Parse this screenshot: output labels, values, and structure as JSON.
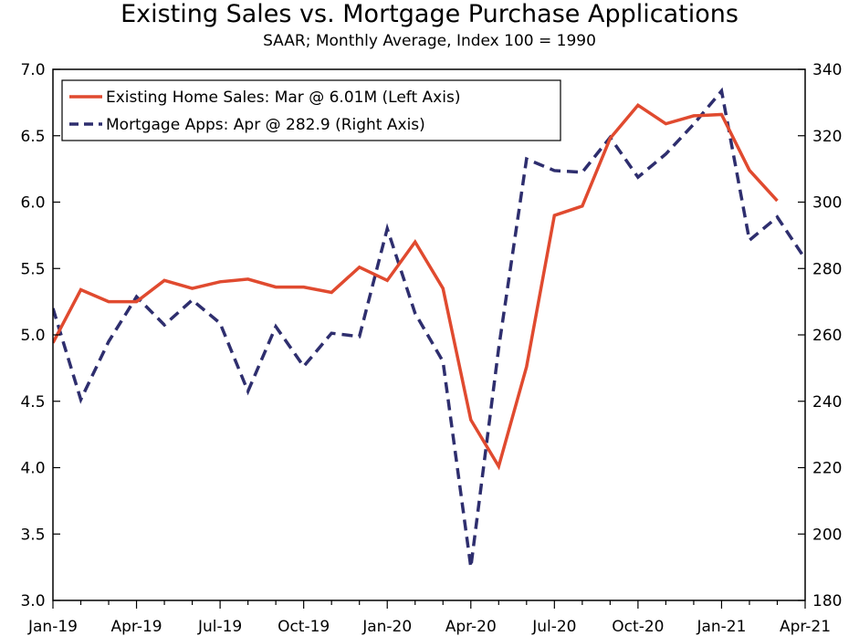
{
  "chart_data": {
    "type": "line",
    "title": "Existing Sales vs. Mortgage Purchase Applications",
    "subtitle": "SAAR; Monthly Average, Index 100 = 1990",
    "x_tick_labels": [
      "Jan-19",
      "Apr-19",
      "Jul-19",
      "Oct-19",
      "Jan-20",
      "Apr-20",
      "Jul-20",
      "Oct-20",
      "Jan-21",
      "Apr-21"
    ],
    "x": [
      "Jan-19",
      "Feb-19",
      "Mar-19",
      "Apr-19",
      "May-19",
      "Jun-19",
      "Jul-19",
      "Aug-19",
      "Sep-19",
      "Oct-19",
      "Nov-19",
      "Dec-19",
      "Jan-20",
      "Feb-20",
      "Mar-20",
      "Apr-20",
      "May-20",
      "Jun-20",
      "Jul-20",
      "Aug-20",
      "Sep-20",
      "Oct-20",
      "Nov-20",
      "Dec-20",
      "Jan-21",
      "Feb-21",
      "Mar-21",
      "Apr-21"
    ],
    "y_left": {
      "lim": [
        3.0,
        7.0
      ],
      "ticks": [
        "3.0",
        "3.5",
        "4.0",
        "4.5",
        "5.0",
        "5.5",
        "6.0",
        "6.5",
        "7.0"
      ]
    },
    "y_right": {
      "lim": [
        180,
        340
      ],
      "ticks": [
        "180",
        "200",
        "220",
        "240",
        "260",
        "280",
        "300",
        "320",
        "340"
      ]
    },
    "grid": false,
    "legend": "top-left",
    "series": [
      {
        "name": "Existing Home Sales: Mar @ 6.01M (Left Axis)",
        "axis": "left",
        "color": "#e04a2f",
        "style": "solid",
        "values": [
          4.94,
          5.34,
          5.25,
          5.25,
          5.41,
          5.35,
          5.4,
          5.42,
          5.36,
          5.36,
          5.32,
          5.51,
          5.41,
          5.7,
          5.35,
          4.36,
          4.01,
          4.76,
          5.9,
          5.97,
          6.48,
          6.73,
          6.59,
          6.65,
          6.66,
          6.24,
          6.01,
          null
        ]
      },
      {
        "name": "Mortgage Apps: Apr @ 282.9 (Right Axis)",
        "axis": "right",
        "color": "#2e2e6e",
        "style": "dashed",
        "values": [
          268.0,
          240.5,
          258.0,
          271.5,
          263.0,
          270.5,
          263.5,
          243.0,
          262.5,
          250.5,
          260.5,
          259.5,
          292.0,
          266.5,
          252.0,
          190.0,
          256.0,
          313.0,
          309.5,
          309.0,
          319.5,
          307.5,
          314.5,
          323.5,
          333.5,
          288.5,
          295.5,
          282.9
        ]
      }
    ]
  }
}
